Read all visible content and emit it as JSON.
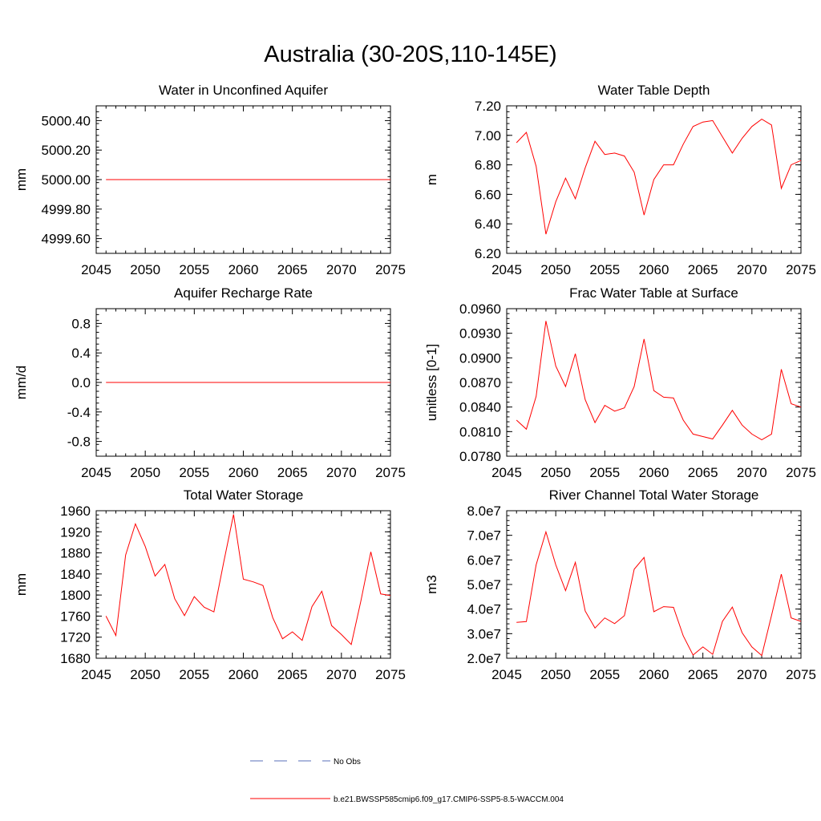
{
  "figure": {
    "title": "Australia (30-20S,110-145E)"
  },
  "legend": {
    "obs_label": "No Obs",
    "model_label": "b.e21.BWSSP585cmip6.f09_g17.CMIP6-SSP5-8.5-WACCM.004",
    "obs_color": "#5a6fb8",
    "model_color": "#ff0000"
  },
  "chart_data": [
    {
      "type": "line",
      "title": "Water in Unconfined Aquifer",
      "ylabel": "mm",
      "xlabel": "",
      "xlim": [
        2045,
        2075
      ],
      "xticks": [
        2045,
        2050,
        2055,
        2060,
        2065,
        2070,
        2075
      ],
      "ylim": [
        4999.5,
        5000.5
      ],
      "yticks": [
        4999.6,
        4999.8,
        5000.0,
        5000.2,
        5000.4
      ],
      "ytick_labels": [
        "4999.60",
        "4999.80",
        "5000.00",
        "5000.20",
        "5000.40"
      ],
      "grid": false,
      "x": [
        2046,
        2047,
        2048,
        2049,
        2050,
        2051,
        2052,
        2053,
        2054,
        2055,
        2056,
        2057,
        2058,
        2059,
        2060,
        2061,
        2062,
        2063,
        2064,
        2065,
        2066,
        2067,
        2068,
        2069,
        2070,
        2071,
        2072,
        2073,
        2074,
        2075
      ],
      "series": [
        {
          "values": [
            5000,
            5000,
            5000,
            5000,
            5000,
            5000,
            5000,
            5000,
            5000,
            5000,
            5000,
            5000,
            5000,
            5000,
            5000,
            5000,
            5000,
            5000,
            5000,
            5000,
            5000,
            5000,
            5000,
            5000,
            5000,
            5000,
            5000,
            5000,
            5000,
            5000
          ],
          "color": "#ff0000"
        }
      ]
    },
    {
      "type": "line",
      "title": "Water Table Depth",
      "ylabel": "m",
      "xlabel": "",
      "xlim": [
        2045,
        2075
      ],
      "xticks": [
        2045,
        2050,
        2055,
        2060,
        2065,
        2070,
        2075
      ],
      "ylim": [
        6.2,
        7.2
      ],
      "yticks": [
        6.2,
        6.4,
        6.6,
        6.8,
        7.0,
        7.2
      ],
      "ytick_labels": [
        "6.20",
        "6.40",
        "6.60",
        "6.80",
        "7.00",
        "7.20"
      ],
      "grid": false,
      "x": [
        2046,
        2047,
        2048,
        2049,
        2050,
        2051,
        2052,
        2053,
        2054,
        2055,
        2056,
        2057,
        2058,
        2059,
        2060,
        2061,
        2062,
        2063,
        2064,
        2065,
        2066,
        2067,
        2068,
        2069,
        2070,
        2071,
        2072,
        2073,
        2074,
        2075
      ],
      "series": [
        {
          "values": [
            6.95,
            7.02,
            6.79,
            6.33,
            6.55,
            6.71,
            6.57,
            6.78,
            6.96,
            6.87,
            6.88,
            6.86,
            6.75,
            6.46,
            6.7,
            6.8,
            6.8,
            6.94,
            7.06,
            7.09,
            7.1,
            6.99,
            6.88,
            6.98,
            7.06,
            7.11,
            7.07,
            6.64,
            6.8,
            6.83
          ],
          "color": "#ff0000"
        }
      ]
    },
    {
      "type": "line",
      "title": "Aquifer Recharge Rate",
      "ylabel": "mm/d",
      "xlabel": "",
      "xlim": [
        2045,
        2075
      ],
      "xticks": [
        2045,
        2050,
        2055,
        2060,
        2065,
        2070,
        2075
      ],
      "ylim": [
        -1.0,
        1.0
      ],
      "yticks": [
        -0.8,
        -0.4,
        0.0,
        0.4,
        0.8
      ],
      "ytick_labels": [
        "-0.8",
        "-0.4",
        "0.0",
        "0.4",
        "0.8"
      ],
      "grid": false,
      "x": [
        2046,
        2047,
        2048,
        2049,
        2050,
        2051,
        2052,
        2053,
        2054,
        2055,
        2056,
        2057,
        2058,
        2059,
        2060,
        2061,
        2062,
        2063,
        2064,
        2065,
        2066,
        2067,
        2068,
        2069,
        2070,
        2071,
        2072,
        2073,
        2074,
        2075
      ],
      "series": [
        {
          "values": [
            0,
            0,
            0,
            0,
            0,
            0,
            0,
            0,
            0,
            0,
            0,
            0,
            0,
            0,
            0,
            0,
            0,
            0,
            0,
            0,
            0,
            0,
            0,
            0,
            0,
            0,
            0,
            0,
            0,
            0
          ],
          "color": "#ff0000"
        }
      ]
    },
    {
      "type": "line",
      "title": "Frac Water Table at Surface",
      "ylabel": "unitless [0-1]",
      "xlabel": "",
      "xlim": [
        2045,
        2075
      ],
      "xticks": [
        2045,
        2050,
        2055,
        2060,
        2065,
        2070,
        2075
      ],
      "ylim": [
        0.078,
        0.096
      ],
      "yticks": [
        0.078,
        0.081,
        0.084,
        0.087,
        0.09,
        0.093,
        0.096
      ],
      "ytick_labels": [
        "0.0780",
        "0.0810",
        "0.0840",
        "0.0870",
        "0.0900",
        "0.0930",
        "0.0960"
      ],
      "grid": false,
      "x": [
        2046,
        2047,
        2048,
        2049,
        2050,
        2051,
        2052,
        2053,
        2054,
        2055,
        2056,
        2057,
        2058,
        2059,
        2060,
        2061,
        2062,
        2063,
        2064,
        2065,
        2066,
        2067,
        2068,
        2069,
        2070,
        2071,
        2072,
        2073,
        2074,
        2075
      ],
      "series": [
        {
          "values": [
            0.0824,
            0.0813,
            0.0853,
            0.0945,
            0.089,
            0.0865,
            0.0905,
            0.0849,
            0.0821,
            0.0842,
            0.0835,
            0.0839,
            0.0865,
            0.0923,
            0.086,
            0.0852,
            0.0851,
            0.0824,
            0.0807,
            0.0804,
            0.0801,
            0.0818,
            0.0836,
            0.0818,
            0.0807,
            0.08,
            0.0807,
            0.0886,
            0.0844,
            0.084
          ],
          "color": "#ff0000"
        }
      ]
    },
    {
      "type": "line",
      "title": "Total Water Storage",
      "ylabel": "mm",
      "xlabel": "",
      "xlim": [
        2045,
        2075
      ],
      "xticks": [
        2045,
        2050,
        2055,
        2060,
        2065,
        2070,
        2075
      ],
      "ylim": [
        1680,
        1960
      ],
      "yticks": [
        1680,
        1720,
        1760,
        1800,
        1840,
        1880,
        1920,
        1960
      ],
      "ytick_labels": [
        "1680",
        "1720",
        "1760",
        "1800",
        "1840",
        "1880",
        "1920",
        "1960"
      ],
      "grid": false,
      "x": [
        2046,
        2047,
        2048,
        2049,
        2050,
        2051,
        2052,
        2053,
        2054,
        2055,
        2056,
        2057,
        2058,
        2059,
        2060,
        2061,
        2062,
        2063,
        2064,
        2065,
        2066,
        2067,
        2068,
        2069,
        2070,
        2071,
        2072,
        2073,
        2074,
        2075
      ],
      "series": [
        {
          "values": [
            1760,
            1723,
            1876,
            1935,
            1892,
            1836,
            1858,
            1793,
            1761,
            1797,
            1777,
            1768,
            1862,
            1953,
            1830,
            1825,
            1818,
            1757,
            1717,
            1730,
            1714,
            1778,
            1807,
            1742,
            1725,
            1706,
            1790,
            1882,
            1802,
            1799
          ],
          "color": "#ff0000"
        }
      ]
    },
    {
      "type": "line",
      "title": "River Channel Total Water Storage",
      "ylabel": "m3",
      "xlabel": "",
      "xlim": [
        2045,
        2075
      ],
      "xticks": [
        2045,
        2050,
        2055,
        2060,
        2065,
        2070,
        2075
      ],
      "ylim": [
        20000000,
        80000000
      ],
      "yticks": [
        20000000,
        30000000,
        40000000,
        50000000,
        60000000,
        70000000,
        80000000
      ],
      "ytick_labels": [
        "2.0e7",
        "3.0e7",
        "4.0e7",
        "5.0e7",
        "6.0e7",
        "7.0e7",
        "8.0e7"
      ],
      "grid": false,
      "x": [
        2046,
        2047,
        2048,
        2049,
        2050,
        2051,
        2052,
        2053,
        2054,
        2055,
        2056,
        2057,
        2058,
        2059,
        2060,
        2061,
        2062,
        2063,
        2064,
        2065,
        2066,
        2067,
        2068,
        2069,
        2070,
        2071,
        2072,
        2073,
        2074,
        2075
      ],
      "series": [
        {
          "values": [
            34600000,
            34900000,
            58000000,
            71400000,
            58000000,
            47500000,
            59000000,
            39200000,
            32300000,
            36400000,
            34100000,
            37300000,
            56200000,
            61000000,
            38900000,
            41000000,
            40700000,
            29100000,
            21300000,
            24600000,
            21600000,
            35000000,
            40800000,
            30400000,
            24600000,
            21100000,
            37400000,
            54200000,
            36400000,
            35000000
          ],
          "color": "#ff0000"
        }
      ]
    }
  ]
}
